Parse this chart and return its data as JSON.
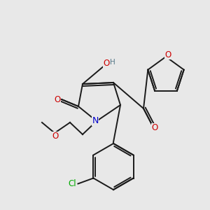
{
  "background_color": "#e8e8e8",
  "bond_color": "#1a1a1a",
  "atom_colors": {
    "O": "#cc0000",
    "N": "#0000cc",
    "Cl": "#00aa00",
    "H": "#557788",
    "C": "#1a1a1a"
  },
  "figsize": [
    3.0,
    3.0
  ],
  "dpi": 100
}
